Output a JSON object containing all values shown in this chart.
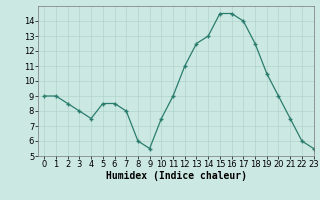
{
  "x": [
    0,
    1,
    2,
    3,
    4,
    5,
    6,
    7,
    8,
    9,
    10,
    11,
    12,
    13,
    14,
    15,
    16,
    17,
    18,
    19,
    20,
    21,
    22,
    23
  ],
  "y": [
    9,
    9,
    8.5,
    8,
    7.5,
    8.5,
    8.5,
    8,
    6,
    5.5,
    7.5,
    9,
    11,
    12.5,
    13,
    14.5,
    14.5,
    14,
    12.5,
    10.5,
    9,
    7.5,
    6,
    5.5
  ],
  "line_color": "#2a7d6e",
  "marker": "+",
  "marker_color": "#2a7d6e",
  "bg_color": "#cce8e2",
  "grid_color": "#b0d4cc",
  "xlabel": "Humidex (Indice chaleur)",
  "ylim": [
    5,
    15
  ],
  "xlim": [
    -0.5,
    23
  ],
  "yticks": [
    5,
    6,
    7,
    8,
    9,
    10,
    11,
    12,
    13,
    14
  ],
  "xticks": [
    0,
    1,
    2,
    3,
    4,
    5,
    6,
    7,
    8,
    9,
    10,
    11,
    12,
    13,
    14,
    15,
    16,
    17,
    18,
    19,
    20,
    21,
    22,
    23
  ],
  "label_fontsize": 7,
  "tick_fontsize": 6
}
